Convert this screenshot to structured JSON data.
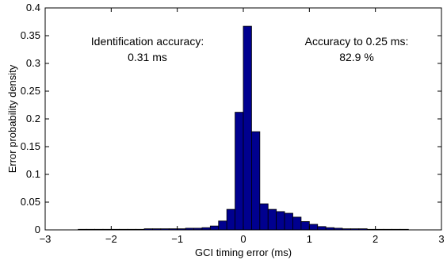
{
  "chart_data": {
    "type": "bar",
    "title": "",
    "xlabel": "GCI timing error (ms)",
    "ylabel": "Error probability density",
    "xlim": [
      -3,
      3
    ],
    "ylim": [
      0,
      0.4
    ],
    "xticks": [
      -3,
      -2,
      -1,
      0,
      1,
      2,
      3
    ],
    "yticks": [
      0,
      0.05,
      0.1,
      0.15,
      0.2,
      0.25,
      0.3,
      0.35,
      0.4
    ],
    "ytick_labels": [
      "0",
      "0.05",
      "0.1",
      "0.15",
      "0.2",
      "0.25",
      "0.3",
      "0.35",
      "0.4"
    ],
    "bin_width": 0.125,
    "bin_edges_start": -2.5,
    "values": [
      0.001,
      0.001,
      0.001,
      0.001,
      0.001,
      0.001,
      0.001,
      0.001,
      0.002,
      0.002,
      0.002,
      0.002,
      0.002,
      0.003,
      0.003,
      0.004,
      0.007,
      0.016,
      0.037,
      0.212,
      0.367,
      0.177,
      0.047,
      0.037,
      0.033,
      0.03,
      0.023,
      0.015,
      0.01,
      0.006,
      0.004,
      0.003,
      0.002,
      0.002,
      0.002,
      0.001,
      0.001,
      0.001,
      0.001,
      0.001
    ],
    "bar_color": "#00008f",
    "annotations": [
      {
        "id": "ident",
        "lines": [
          "Identification accuracy:",
          "0.31 ms"
        ]
      },
      {
        "id": "acc",
        "lines": [
          "Accuracy to 0.25 ms:",
          "82.9 %"
        ]
      }
    ]
  }
}
